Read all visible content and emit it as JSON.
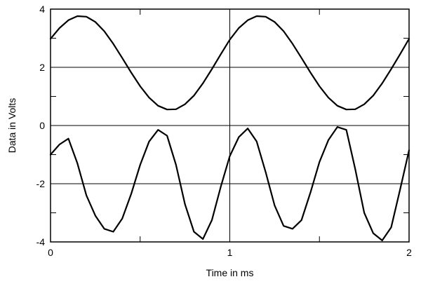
{
  "chart_data": {
    "type": "line",
    "title": "",
    "xlabel": "Time in ms",
    "ylabel": "Data in Volts",
    "xlim": [
      0,
      2
    ],
    "ylim": [
      -4,
      4
    ],
    "x_ticks": [
      "0",
      "1",
      "2"
    ],
    "y_ticks": [
      "-4",
      "-2",
      "0",
      "2",
      "4"
    ],
    "grid": true,
    "legend": "none",
    "line_color": "#000000",
    "series": [
      {
        "x": [
          0,
          0.05,
          0.1,
          0.15,
          0.2,
          0.25,
          0.3,
          0.35,
          0.4,
          0.45,
          0.5,
          0.55,
          0.6,
          0.65,
          0.7,
          0.75,
          0.8,
          0.85,
          0.9,
          0.95,
          1.0,
          1.05,
          1.1,
          1.15,
          1.2,
          1.25,
          1.3,
          1.35,
          1.4,
          1.45,
          1.5,
          1.55,
          1.6,
          1.65,
          1.7,
          1.75,
          1.8,
          1.85,
          1.9,
          1.95,
          2.0
        ],
        "values": [
          2.98,
          3.35,
          3.62,
          3.76,
          3.74,
          3.56,
          3.24,
          2.81,
          2.32,
          1.82,
          1.35,
          0.96,
          0.68,
          0.55,
          0.56,
          0.73,
          1.03,
          1.45,
          1.94,
          2.45,
          2.95,
          3.35,
          3.62,
          3.76,
          3.74,
          3.56,
          3.24,
          2.81,
          2.32,
          1.82,
          1.35,
          0.96,
          0.68,
          0.55,
          0.56,
          0.73,
          1.03,
          1.45,
          1.94,
          2.45,
          2.98
        ]
      },
      {
        "x": [
          0,
          0.05,
          0.1,
          0.15,
          0.2,
          0.25,
          0.3,
          0.35,
          0.4,
          0.45,
          0.5,
          0.55,
          0.6,
          0.65,
          0.7,
          0.75,
          0.8,
          0.85,
          0.9,
          0.95,
          1.0,
          1.05,
          1.1,
          1.15,
          1.2,
          1.25,
          1.3,
          1.35,
          1.4,
          1.45,
          1.5,
          1.55,
          1.6,
          1.65,
          1.7,
          1.75,
          1.8,
          1.85,
          1.9,
          1.95,
          2.0
        ],
        "values": [
          -1.0,
          -0.65,
          -0.45,
          -1.3,
          -2.4,
          -3.1,
          -3.55,
          -3.65,
          -3.2,
          -2.35,
          -1.35,
          -0.55,
          -0.15,
          -0.35,
          -1.35,
          -2.7,
          -3.65,
          -3.9,
          -3.25,
          -2.1,
          -1.05,
          -0.4,
          -0.1,
          -0.55,
          -1.6,
          -2.75,
          -3.45,
          -3.55,
          -3.25,
          -2.3,
          -1.25,
          -0.5,
          -0.05,
          -0.15,
          -1.5,
          -3.0,
          -3.7,
          -3.95,
          -3.5,
          -2.2,
          -0.85
        ]
      }
    ]
  }
}
